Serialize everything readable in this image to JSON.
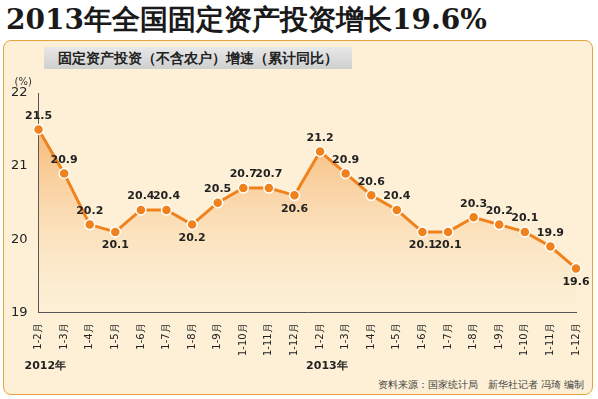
{
  "chart_data": {
    "type": "line",
    "title": "2013年全国固定资产投资增长19.6%",
    "subtitle": "固定资产投资（不含农户）增速（累计同比）",
    "ylabel": "(%)",
    "categories": [
      "1-2月",
      "1-3月",
      "1-4月",
      "1-5月",
      "1-6月",
      "1-7月",
      "1-8月",
      "1-9月",
      "1-10月",
      "1-11月",
      "1-12月",
      "1-2月",
      "1-3月",
      "1-4月",
      "1-5月",
      "1-6月",
      "1-7月",
      "1-8月",
      "1-9月",
      "1-10月",
      "1-11月",
      "1-12月"
    ],
    "values": [
      21.5,
      20.9,
      20.2,
      20.1,
      20.4,
      20.4,
      20.2,
      20.5,
      20.7,
      20.7,
      20.6,
      21.2,
      20.9,
      20.6,
      20.4,
      20.1,
      20.1,
      20.3,
      20.2,
      20.1,
      19.9,
      19.6
    ],
    "x_groups": [
      {
        "label": "2012年",
        "start": 0
      },
      {
        "label": "2013年",
        "start": 11
      }
    ],
    "color": "#f0821e",
    "ylim": [
      19,
      22
    ],
    "yticks": [
      19,
      20,
      21,
      22
    ],
    "grid": false,
    "data_labels": true,
    "marker": "circle",
    "sources": [
      "资料来源：国家统计局",
      "新华社记者 冯琦 编制"
    ]
  }
}
